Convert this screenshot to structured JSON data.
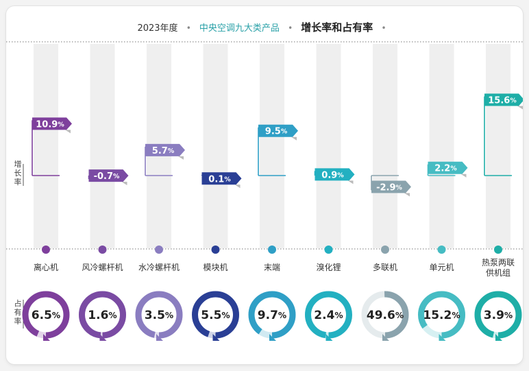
{
  "header": {
    "year": "2023年度",
    "subject": "中央空调九大类产品",
    "title": "增长率和占有率"
  },
  "side_labels": {
    "growth": "增长率",
    "share": "占有率"
  },
  "colors": [
    "#7e3f9c",
    "#7a4ba3",
    "#8a7dc0",
    "#2a3f95",
    "#2f9fc6",
    "#23b0c1",
    "#8aa3ad",
    "#46bcc3",
    "#1eaea7"
  ],
  "chart_data": {
    "type": "bar",
    "categories": [
      "离心机",
      "风冷螺杆机",
      "水冷螺杆机",
      "模块机",
      "末端",
      "溴化锂",
      "多联机",
      "单元机",
      "热泵两联供机组"
    ],
    "series": [
      {
        "name": "增长率",
        "values": [
          10.9,
          -0.7,
          5.7,
          0.1,
          9.5,
          0.9,
          -2.9,
          2.2,
          15.6
        ]
      },
      {
        "name": "占有率",
        "values": [
          6.5,
          1.6,
          3.5,
          5.5,
          9.7,
          2.4,
          49.6,
          15.2,
          3.9
        ]
      }
    ],
    "unit": "%"
  }
}
